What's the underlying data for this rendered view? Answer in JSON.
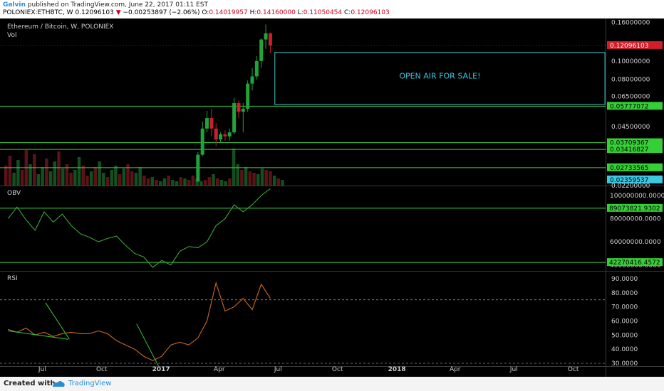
{
  "header": {
    "author": "Galvin",
    "published": "published on TradingView.com, June 22, 2017 01:11 EST",
    "symbol": "POLONIEX:ETHBTC, W",
    "price": "0.12096103",
    "change_arrow": "▼",
    "change": "−0.00253897 (−2.06%)",
    "o_label": "O:",
    "o_value": "0.14019957",
    "h_label": "H:",
    "h_value": "0.14160000",
    "l_label": "L:",
    "l_value": "0.11050454",
    "c_label": "C:",
    "c_value": "0.12096103"
  },
  "footer": {
    "created": "Created with",
    "brand": "TradingView"
  },
  "colors": {
    "background": "#000000",
    "up": "#1fa33a",
    "down": "#c8202c",
    "accent_line": "#3dcc3d",
    "box": "#3ba3a8",
    "obv_line": "#3aa53a",
    "rsi_line": "#c86a22",
    "trend_line": "#3fc63f",
    "text": "#cfcfcf"
  },
  "chart_data": [
    {
      "type": "candlestick",
      "title": "Ethereum / Bitcoin, W, POLONIEX",
      "subtitle": "Vol",
      "y_scale": "log",
      "ylim": [
        0.022,
        0.165
      ],
      "y_ticks": [
        "0.16000000",
        "0.10000000",
        "0.08000000",
        "0.06500000",
        "0.04500000",
        "0.02200000"
      ],
      "price_labels": [
        {
          "value": 0.12096103,
          "text": "0.12096103",
          "color": "#d21e2b",
          "text_color": "#ffffff",
          "line": false
        },
        {
          "value": 0.05777072,
          "text": "0.05777072",
          "color": "#35d035",
          "text_color": "#000000",
          "line": true
        },
        {
          "value": 0.03709367,
          "text": "0.03709367",
          "color": "#35d035",
          "text_color": "#000000",
          "line": true
        },
        {
          "value": 0.03416827,
          "text": "0.03416827",
          "color": "#35d035",
          "text_color": "#000000",
          "line": true
        },
        {
          "value": 0.02733565,
          "text": "0.02733565",
          "color": "#35d035",
          "text_color": "#000000",
          "line": true
        },
        {
          "value": 0.02359537,
          "text": "0.02359537",
          "color": "#3cc8e0",
          "text_color": "#000000",
          "line": false
        }
      ],
      "annotation": {
        "text": "OPEN AIR FOR SALE!",
        "x_start": "2017-06-26",
        "x_end": "2018-11-19",
        "y_top": 0.111,
        "y_bottom": 0.059
      },
      "candles": [
        {
          "date": "2017-02-27",
          "o": 0.0231,
          "h": 0.033,
          "l": 0.023,
          "c": 0.032
        },
        {
          "date": "2017-03-06",
          "o": 0.032,
          "h": 0.048,
          "l": 0.0315,
          "c": 0.044
        },
        {
          "date": "2017-03-13",
          "o": 0.044,
          "h": 0.0545,
          "l": 0.042,
          "c": 0.05
        },
        {
          "date": "2017-03-20",
          "o": 0.05,
          "h": 0.056,
          "l": 0.04,
          "c": 0.044
        },
        {
          "date": "2017-03-27",
          "o": 0.044,
          "h": 0.047,
          "l": 0.0355,
          "c": 0.0385
        },
        {
          "date": "2017-04-03",
          "o": 0.0385,
          "h": 0.042,
          "l": 0.037,
          "c": 0.041
        },
        {
          "date": "2017-04-10",
          "o": 0.041,
          "h": 0.043,
          "l": 0.038,
          "c": 0.04
        },
        {
          "date": "2017-04-17",
          "o": 0.04,
          "h": 0.044,
          "l": 0.038,
          "c": 0.042
        },
        {
          "date": "2017-04-24",
          "o": 0.042,
          "h": 0.064,
          "l": 0.041,
          "c": 0.06
        },
        {
          "date": "2017-05-01",
          "o": 0.06,
          "h": 0.062,
          "l": 0.05,
          "c": 0.054
        },
        {
          "date": "2017-05-08",
          "o": 0.054,
          "h": 0.06,
          "l": 0.042,
          "c": 0.056
        },
        {
          "date": "2017-05-15",
          "o": 0.056,
          "h": 0.079,
          "l": 0.054,
          "c": 0.076
        },
        {
          "date": "2017-05-22",
          "o": 0.076,
          "h": 0.092,
          "l": 0.07,
          "c": 0.083
        },
        {
          "date": "2017-05-29",
          "o": 0.083,
          "h": 0.106,
          "l": 0.08,
          "c": 0.1
        },
        {
          "date": "2017-06-05",
          "o": 0.1,
          "h": 0.132,
          "l": 0.092,
          "c": 0.13
        },
        {
          "date": "2017-06-12",
          "o": 0.13,
          "h": 0.156,
          "l": 0.116,
          "c": 0.1402
        },
        {
          "date": "2017-06-19",
          "o": 0.14019957,
          "h": 0.1416,
          "l": 0.11050454,
          "c": 0.12096103
        }
      ]
    },
    {
      "type": "line",
      "title": "OBV",
      "ylim": [
        35000000,
        108000000
      ],
      "y_ticks": [
        "100000000.0000",
        "80000000.0000",
        "60000000.0000",
        "40000000.0000"
      ],
      "price_labels": [
        {
          "value": 89073821.9302,
          "text": "89073821.9302",
          "color": "#35d035",
          "text_color": "#000000",
          "line": true
        },
        {
          "value": 42270416.4572,
          "text": "42270416.4572",
          "color": "#35d035",
          "text_color": "#000000",
          "line": true
        }
      ],
      "series": [
        {
          "values": [
            [
              "2016-05-09",
              80000000
            ],
            [
              "2016-05-23",
              90000000
            ],
            [
              "2016-06-06",
              79000000
            ],
            [
              "2016-06-20",
              70000000
            ],
            [
              "2016-07-04",
              86000000
            ],
            [
              "2016-07-18",
              77000000
            ],
            [
              "2016-08-01",
              84000000
            ],
            [
              "2016-08-15",
              74000000
            ],
            [
              "2016-08-29",
              67000000
            ],
            [
              "2016-09-12",
              64000000
            ],
            [
              "2016-09-26",
              60000000
            ],
            [
              "2016-10-10",
              63000000
            ],
            [
              "2016-10-24",
              65000000
            ],
            [
              "2016-11-07",
              57000000
            ],
            [
              "2016-11-21",
              50000000
            ],
            [
              "2016-12-05",
              47000000
            ],
            [
              "2016-12-19",
              38000000
            ],
            [
              "2017-01-02",
              44000000
            ],
            [
              "2017-01-16",
              40000000
            ],
            [
              "2017-01-30",
              52000000
            ],
            [
              "2017-02-13",
              56000000
            ],
            [
              "2017-02-27",
              55000000
            ],
            [
              "2017-03-13",
              60000000
            ],
            [
              "2017-03-27",
              74000000
            ],
            [
              "2017-04-10",
              80000000
            ],
            [
              "2017-04-24",
              92000000
            ],
            [
              "2017-05-08",
              86000000
            ],
            [
              "2017-05-22",
              92000000
            ],
            [
              "2017-06-05",
              100000000
            ],
            [
              "2017-06-19",
              106000000
            ]
          ]
        }
      ]
    },
    {
      "type": "line",
      "title": "RSI",
      "ylim": [
        28,
        95
      ],
      "y_ticks": [
        "90.0000",
        "80.0000",
        "70.0000",
        "60.0000",
        "50.0000",
        "40.0000",
        "30.0000"
      ],
      "reference_lines": [
        75,
        30
      ],
      "series": [
        {
          "values": [
            [
              "2016-05-09",
              54
            ],
            [
              "2016-05-23",
              52
            ],
            [
              "2016-06-06",
              55
            ],
            [
              "2016-06-20",
              50
            ],
            [
              "2016-07-04",
              52
            ],
            [
              "2016-07-18",
              49
            ],
            [
              "2016-08-01",
              51
            ],
            [
              "2016-08-15",
              52
            ],
            [
              "2016-08-29",
              51
            ],
            [
              "2016-09-12",
              51
            ],
            [
              "2016-09-26",
              53
            ],
            [
              "2016-10-10",
              51
            ],
            [
              "2016-10-24",
              46
            ],
            [
              "2016-11-07",
              43
            ],
            [
              "2016-11-21",
              40
            ],
            [
              "2016-12-05",
              35
            ],
            [
              "2016-12-19",
              32
            ],
            [
              "2017-01-02",
              35
            ],
            [
              "2017-01-16",
              43
            ],
            [
              "2017-01-30",
              45
            ],
            [
              "2017-02-13",
              43
            ],
            [
              "2017-02-27",
              48
            ],
            [
              "2017-03-13",
              60
            ],
            [
              "2017-03-27",
              87
            ],
            [
              "2017-04-10",
              67
            ],
            [
              "2017-04-24",
              70
            ],
            [
              "2017-05-08",
              76
            ],
            [
              "2017-05-22",
              68
            ],
            [
              "2017-06-05",
              86
            ],
            [
              "2017-06-19",
              76
            ]
          ]
        }
      ]
    }
  ],
  "x_axis": {
    "labels": [
      "Jul",
      "Oct",
      "2017",
      "Apr",
      "Jul",
      "Oct",
      "2018",
      "Apr",
      "Jul",
      "Oct"
    ]
  }
}
